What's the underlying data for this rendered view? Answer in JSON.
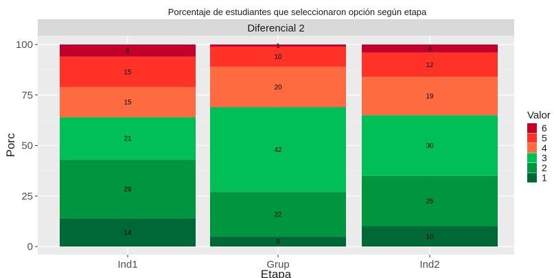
{
  "chart_data": {
    "type": "bar",
    "stacked": true,
    "title": "Porcentaje de estudiantes que seleccionaron opción según etapa",
    "facet_label": "Diferencial 2",
    "xlabel": "Etapa",
    "ylabel": "Porc",
    "ylim": [
      0,
      100
    ],
    "yticks": [
      0,
      25,
      50,
      75,
      100
    ],
    "categories": [
      "Ind1",
      "Grup",
      "Ind2"
    ],
    "legend_title": "Valor",
    "legend_position": "right",
    "grid": true,
    "series": [
      {
        "name": "1",
        "color": "#006837",
        "values": [
          14,
          5,
          10
        ]
      },
      {
        "name": "2",
        "color": "#00953f",
        "values": [
          29,
          22,
          25
        ]
      },
      {
        "name": "3",
        "color": "#00bf56",
        "values": [
          21,
          42,
          30
        ]
      },
      {
        "name": "4",
        "color": "#fe6b40",
        "values": [
          15,
          20,
          19
        ]
      },
      {
        "name": "5",
        "color": "#fe3226",
        "values": [
          15,
          10,
          12
        ]
      },
      {
        "name": "6",
        "color": "#c3002c",
        "values": [
          6,
          1,
          4
        ]
      }
    ]
  }
}
